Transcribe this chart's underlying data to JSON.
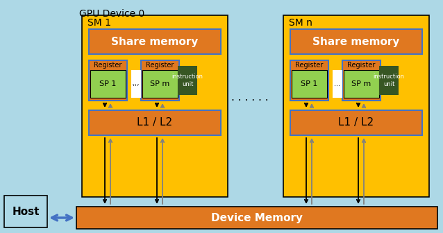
{
  "fig_width": 6.38,
  "fig_height": 3.36,
  "dpi": 100,
  "bg_light_blue": "#ADD8E6",
  "color_yellow": "#FFC000",
  "color_orange": "#E07820",
  "color_green_light": "#92D050",
  "color_green_dark": "#375623",
  "color_white": "#FFFFFF",
  "color_blue_outline": "#4472C4",
  "color_black": "#000000",
  "color_gray_arrow": "#808080",
  "gpu_label": "GPU Device 0",
  "sm1_label": "SM 1",
  "smn_label": "SM n",
  "share_mem_label": "Share memory",
  "reg_label": "Register",
  "sp1_label": "SP 1",
  "spm_label": "SP m",
  "instr_label": "instruction\nunit",
  "l1l2_label": "L1 / L2",
  "dev_mem_label": "Device Memory",
  "host_label": "Host",
  "dots_label": "· · · · · ·"
}
